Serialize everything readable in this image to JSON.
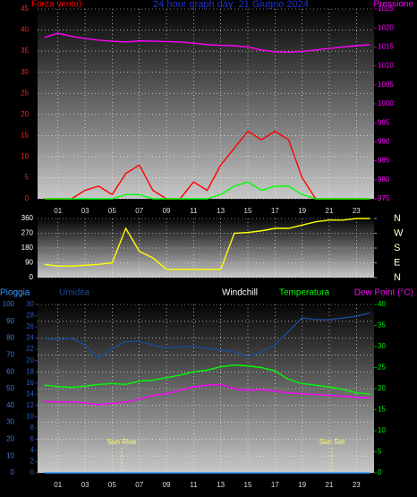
{
  "title": "24 hour graph day: 21 Giugno 2024",
  "chart_data": [
    {
      "type": "line",
      "x": [
        0,
        1,
        2,
        3,
        4,
        5,
        6,
        7,
        8,
        9,
        10,
        11,
        12,
        13,
        14,
        15,
        16,
        17,
        18,
        19,
        20,
        21,
        22,
        23,
        24
      ],
      "xlim": [
        -0.5,
        24.3
      ],
      "xticks": [
        {
          "value": 1,
          "label": "01"
        },
        {
          "value": 3,
          "label": "03"
        },
        {
          "value": 5,
          "label": "05"
        },
        {
          "value": 7,
          "label": "07"
        },
        {
          "value": 9,
          "label": "09"
        },
        {
          "value": 11,
          "label": "11"
        },
        {
          "value": 13,
          "label": "13"
        },
        {
          "value": 15,
          "label": "15"
        },
        {
          "value": 17,
          "label": "17"
        },
        {
          "value": 19,
          "label": "19"
        },
        {
          "value": 21,
          "label": "21"
        },
        {
          "value": 23,
          "label": "23"
        }
      ],
      "ylim": [
        0,
        45
      ],
      "yticks": [
        0,
        5,
        10,
        15,
        20,
        25,
        30,
        35,
        40,
        45
      ],
      "y2lim": [
        975,
        1025
      ],
      "y2ticks": [
        975,
        980,
        985,
        990,
        995,
        1000,
        1005,
        1010,
        1015,
        1020,
        1025
      ],
      "grid": true,
      "series": [
        {
          "name": "Forza vento)",
          "color": "#ff0000",
          "values": [
            0,
            0,
            0,
            2,
            3,
            1,
            6,
            8,
            2,
            0,
            0,
            4,
            2,
            8,
            12,
            16,
            14,
            16,
            14,
            5,
            0,
            0,
            0,
            0,
            0
          ]
        },
        {
          "color": "#00ff00",
          "values": [
            0,
            0,
            0,
            0,
            0,
            0,
            1,
            1,
            0,
            0,
            0,
            0,
            0,
            1,
            3,
            4,
            2,
            3,
            3,
            1,
            0,
            0,
            0,
            0,
            0
          ]
        },
        {
          "name": "Pressione",
          "color": "#ff00ff",
          "axis": "y2",
          "values": [
            1017.5,
            1018.6,
            1017.8,
            1017.2,
            1016.8,
            1016.5,
            1016.3,
            1016.6,
            1016.5,
            1016.4,
            1016.3,
            1016.0,
            1015.6,
            1015.4,
            1015.3,
            1015.0,
            1014.2,
            1013.7,
            1013.6,
            1013.8,
            1014.2,
            1014.6,
            1015.0,
            1015.3,
            1015.6
          ]
        }
      ]
    },
    {
      "type": "line",
      "x": [
        0,
        1,
        2,
        3,
        4,
        5,
        6,
        7,
        8,
        9,
        10,
        11,
        12,
        13,
        14,
        15,
        16,
        17,
        18,
        19,
        20,
        21,
        22,
        23,
        24
      ],
      "xlim": [
        -0.5,
        24.3
      ],
      "xticks": [
        1,
        3,
        5,
        7,
        9,
        11,
        13,
        15,
        17,
        19,
        21,
        23
      ],
      "ylim": [
        0,
        360
      ],
      "yticks": [
        0,
        90,
        180,
        270,
        360
      ],
      "y2lim": [
        0,
        360
      ],
      "y2ticks": [
        {
          "value": 0,
          "label": "N"
        },
        {
          "value": 90,
          "label": "E"
        },
        {
          "value": 180,
          "label": "S"
        },
        {
          "value": 270,
          "label": "W"
        },
        {
          "value": 360,
          "label": "N"
        }
      ],
      "grid": true,
      "series": [
        {
          "color": "#ffff00",
          "values": [
            80,
            70,
            70,
            75,
            80,
            90,
            300,
            160,
            120,
            50,
            50,
            50,
            50,
            50,
            270,
            275,
            285,
            300,
            300,
            320,
            340,
            350,
            350,
            360,
            360
          ]
        }
      ]
    },
    {
      "type": "line",
      "x": [
        0,
        1,
        2,
        3,
        4,
        5,
        6,
        7,
        8,
        9,
        10,
        11,
        12,
        13,
        14,
        15,
        16,
        17,
        18,
        19,
        20,
        21,
        22,
        23,
        24
      ],
      "xlim": [
        -0.5,
        24.3
      ],
      "xticks": [
        {
          "value": 1,
          "label": "01"
        },
        {
          "value": 3,
          "label": "03"
        },
        {
          "value": 5,
          "label": "05"
        },
        {
          "value": 7,
          "label": "07"
        },
        {
          "value": 9,
          "label": "09"
        },
        {
          "value": 11,
          "label": "11"
        },
        {
          "value": 13,
          "label": "13"
        },
        {
          "value": 15,
          "label": "15"
        },
        {
          "value": 17,
          "label": "17"
        },
        {
          "value": 19,
          "label": "19"
        },
        {
          "value": 21,
          "label": "21"
        },
        {
          "value": 23,
          "label": "23"
        }
      ],
      "ylim": [
        0,
        100
      ],
      "yticks": [
        0,
        10,
        20,
        30,
        40,
        50,
        60,
        70,
        80,
        90,
        100
      ],
      "y3lim": [
        0,
        30
      ],
      "y3ticks": [
        0,
        2,
        4,
        6,
        8,
        10,
        12,
        14,
        16,
        18,
        20,
        22,
        24,
        26,
        28,
        30
      ],
      "y2lim": [
        0,
        40
      ],
      "y2ticks": [
        0,
        5,
        10,
        15,
        20,
        25,
        30,
        35,
        40
      ],
      "grid": true,
      "annotations": [
        {
          "text": "Windchill"
        },
        {
          "text": "Sun Rise",
          "x": 5.7
        },
        {
          "text": "Sun Set",
          "x": 21.2
        }
      ],
      "series": [
        {
          "name": "Pioggia",
          "color": "#3399ff",
          "values": [
            0,
            0,
            0,
            0,
            0,
            0,
            0,
            0,
            0,
            0,
            0,
            0,
            0,
            0,
            0,
            0,
            0,
            0,
            0,
            0,
            0,
            0,
            0,
            0,
            0
          ]
        },
        {
          "name": "Umidita",
          "color": "#1c4a9a",
          "values": [
            80,
            79,
            80,
            76,
            68,
            74,
            78,
            78,
            76,
            74,
            75,
            75,
            74,
            73,
            72,
            69,
            72,
            76,
            84,
            92,
            91,
            91,
            92,
            93,
            95
          ]
        },
        {
          "name": "Temperatura",
          "color": "#00ff00",
          "axis": "y2",
          "values": [
            20.8,
            20.5,
            20.3,
            20.6,
            21.0,
            21.2,
            21.0,
            21.8,
            22.0,
            22.6,
            23.2,
            24.0,
            24.4,
            25.2,
            25.6,
            25.4,
            25.0,
            24.2,
            22.2,
            21.2,
            20.8,
            20.4,
            19.8,
            19.0,
            18.7
          ]
        },
        {
          "name": "Dew Point (°C)",
          "color": "#ff00ff",
          "axis": "y2",
          "values": [
            17.0,
            16.8,
            16.9,
            16.6,
            16.2,
            16.5,
            16.8,
            17.5,
            18.4,
            18.8,
            19.6,
            20.4,
            20.8,
            21.0,
            20.0,
            19.6,
            19.8,
            19.4,
            19.0,
            18.8,
            18.6,
            18.4,
            18.2,
            17.9,
            17.8
          ]
        }
      ]
    }
  ]
}
